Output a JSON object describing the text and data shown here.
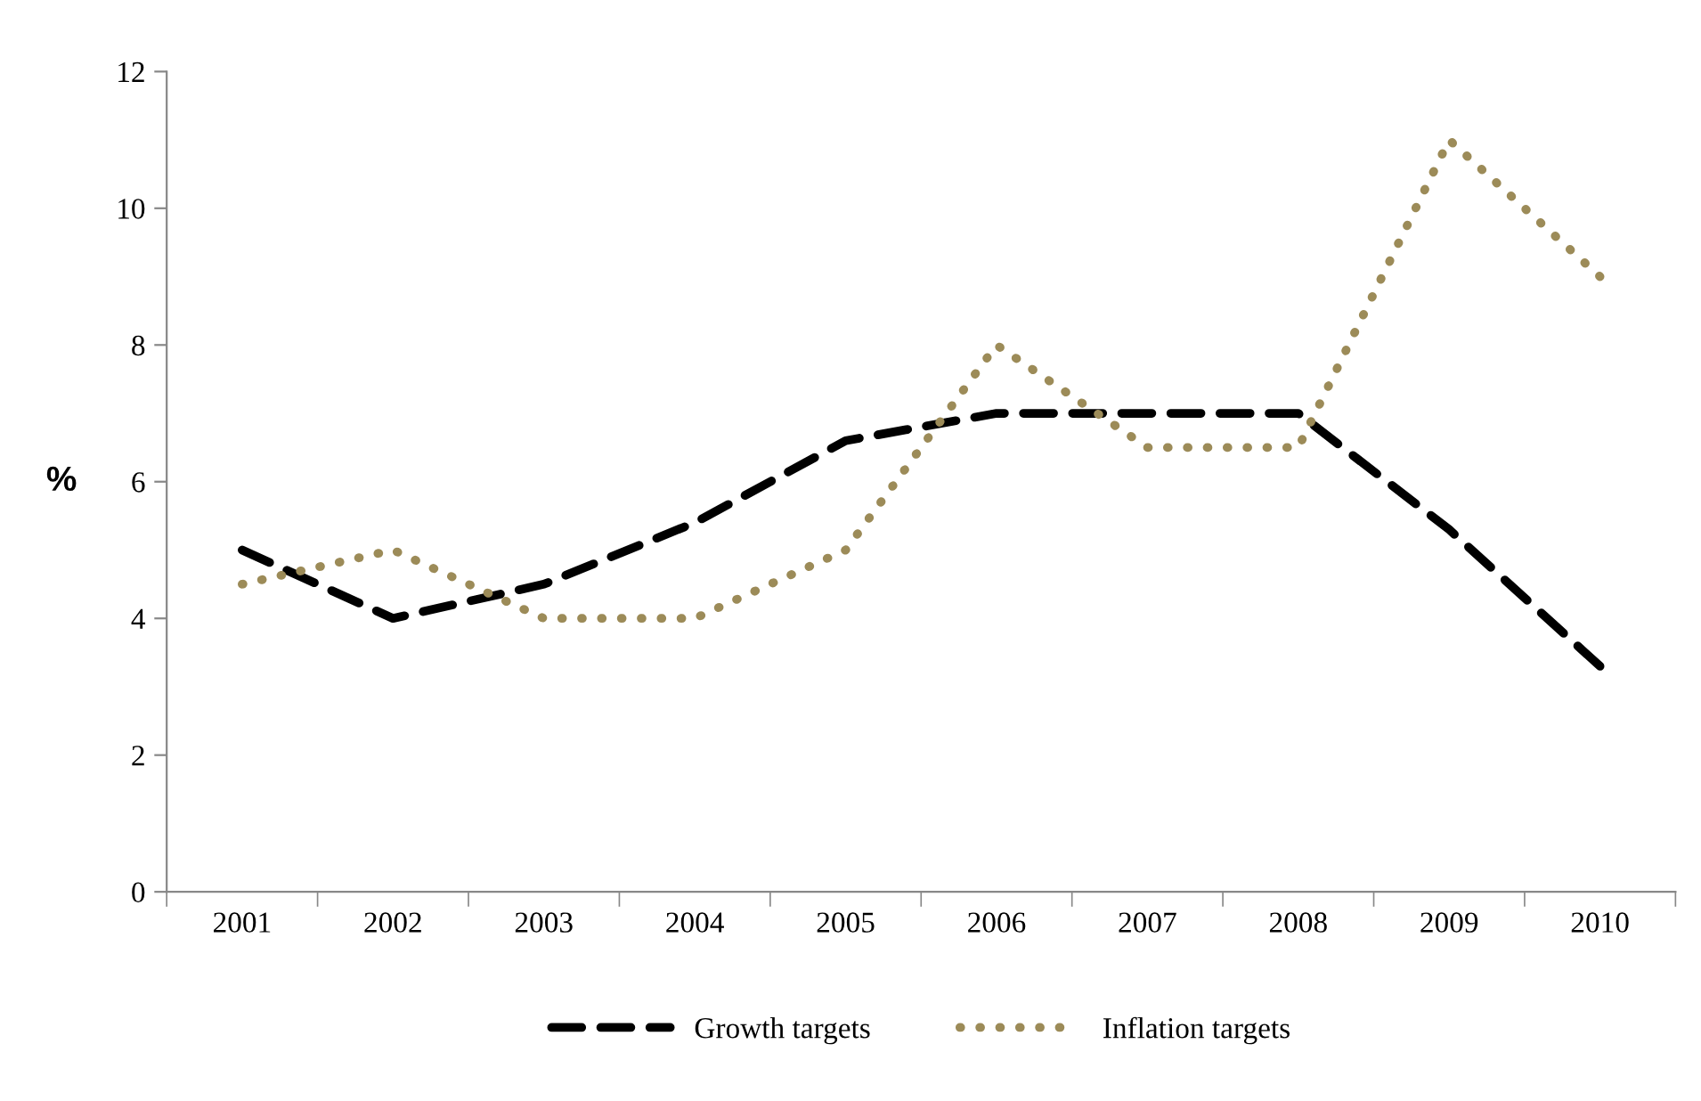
{
  "chart_data": {
    "type": "line",
    "ylabel": "%",
    "categories": [
      "2001",
      "2002",
      "2003",
      "2004",
      "2005",
      "2006",
      "2007",
      "2008",
      "2009",
      "2010"
    ],
    "series": [
      {
        "name": "Growth targets",
        "color": "#000000",
        "line_style": "dashed",
        "values": [
          5,
          4,
          4.5,
          5.4,
          6.6,
          7,
          7,
          7,
          5.3,
          3.3
        ]
      },
      {
        "name": "Inflation targets",
        "color": "#9c8b58",
        "line_style": "dotted",
        "values": [
          4.5,
          5,
          4,
          4,
          5,
          8,
          6.5,
          6.5,
          11,
          9
        ]
      }
    ],
    "ylim": [
      0,
      12
    ],
    "yticks": [
      0,
      2,
      4,
      6,
      8,
      10,
      12
    ],
    "grid": false,
    "legend": "bottom",
    "marker": "none"
  }
}
